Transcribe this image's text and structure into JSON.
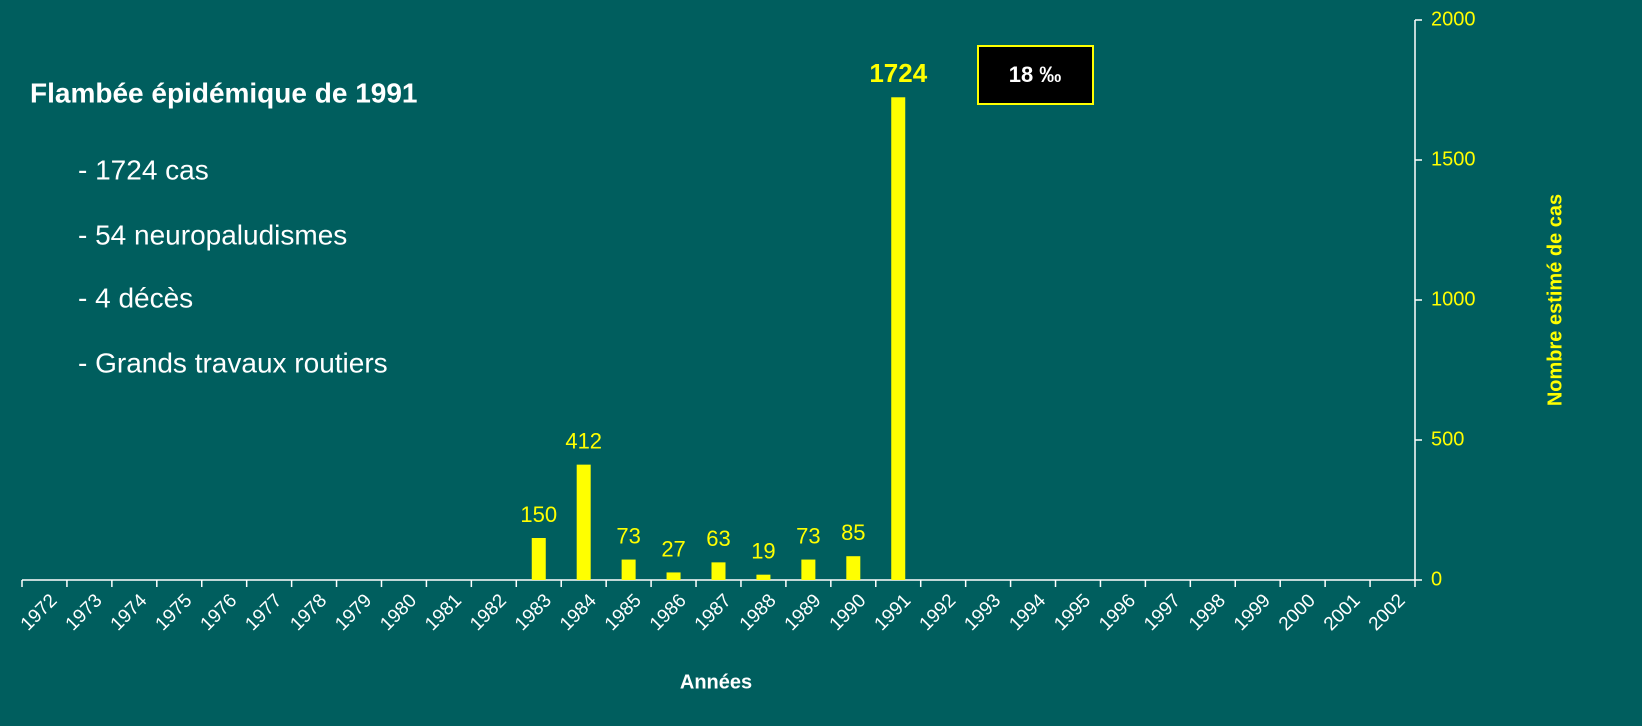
{
  "chart_data": {
    "type": "bar",
    "annotation_title": "Flambée épidémique de 1991",
    "annotations": [
      "- 1724 cas",
      "- 54 neuropaludismes",
      "- 4 décès",
      "- Grands travaux routiers"
    ],
    "box_label": "18 ‰",
    "xlabel": "Années",
    "ylabel": "Nombre estimé de cas",
    "categories": [
      "1972",
      "1973",
      "1974",
      "1975",
      "1976",
      "1977",
      "1978",
      "1979",
      "1980",
      "1981",
      "1982",
      "1983",
      "1984",
      "1985",
      "1986",
      "1987",
      "1988",
      "1989",
      "1990",
      "1991",
      "1992",
      "1993",
      "1994",
      "1995",
      "1996",
      "1997",
      "1998",
      "1999",
      "2000",
      "2001",
      "2002"
    ],
    "values": [
      null,
      null,
      null,
      null,
      null,
      null,
      null,
      null,
      null,
      null,
      null,
      150,
      412,
      73,
      27,
      63,
      19,
      73,
      85,
      1724,
      null,
      null,
      null,
      null,
      null,
      null,
      null,
      null,
      null,
      null,
      null
    ],
    "color": "#ffff00",
    "ylim": [
      0,
      2000
    ],
    "yticks": [
      0,
      500,
      1000,
      1500,
      2000
    ],
    "y_axis_side": "right",
    "grid": false
  }
}
